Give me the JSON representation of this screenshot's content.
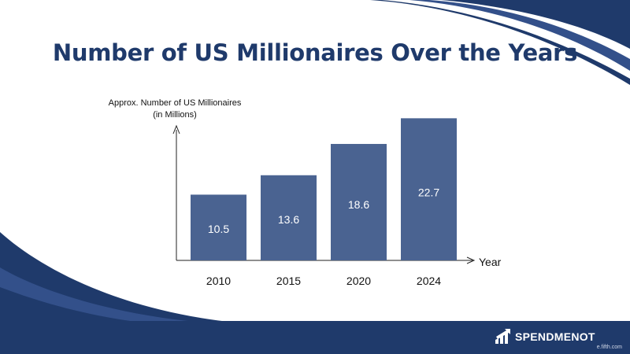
{
  "page": {
    "title": "Number of US Millionaires Over the Years",
    "brand": "SPENDMENOT",
    "credit": "e.fifth.com",
    "brand_color": "#1f3a6b"
  },
  "chart_data": {
    "type": "bar",
    "categories": [
      "2010",
      "2015",
      "2020",
      "2024"
    ],
    "values": [
      10.5,
      13.6,
      18.6,
      22.7
    ],
    "title": "",
    "ylabel": [
      "Approx. Number of US Millionaires",
      "(in Millions)"
    ],
    "xlabel": "Year",
    "ylim": [
      0,
      24
    ],
    "bar_color": "#4a6391",
    "grid": false,
    "legend": "none"
  }
}
